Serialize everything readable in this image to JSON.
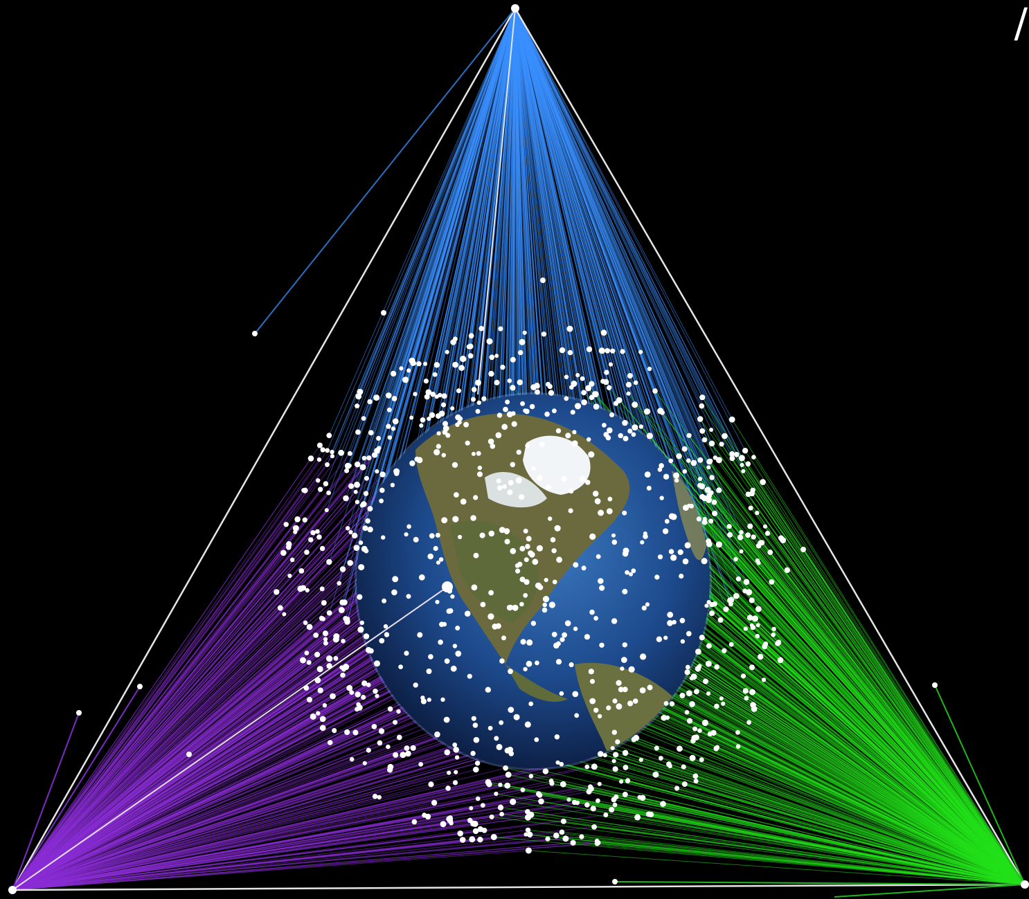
{
  "scene": {
    "background": "#000000",
    "corner_glyph": "/",
    "colors": {
      "top_rays": "#3a8fff",
      "left_rays": "#8a2ed6",
      "right_rays": "#22e01a",
      "frame": "#e6e6e6",
      "satellite": "#ffffff",
      "ocean": "#1d4a8c",
      "land": "#6e6a3e",
      "ice": "#f2f5f8"
    },
    "icons": [
      "earth-globe-icon",
      "satellite-dot-icon",
      "ground-station-icon"
    ]
  }
}
